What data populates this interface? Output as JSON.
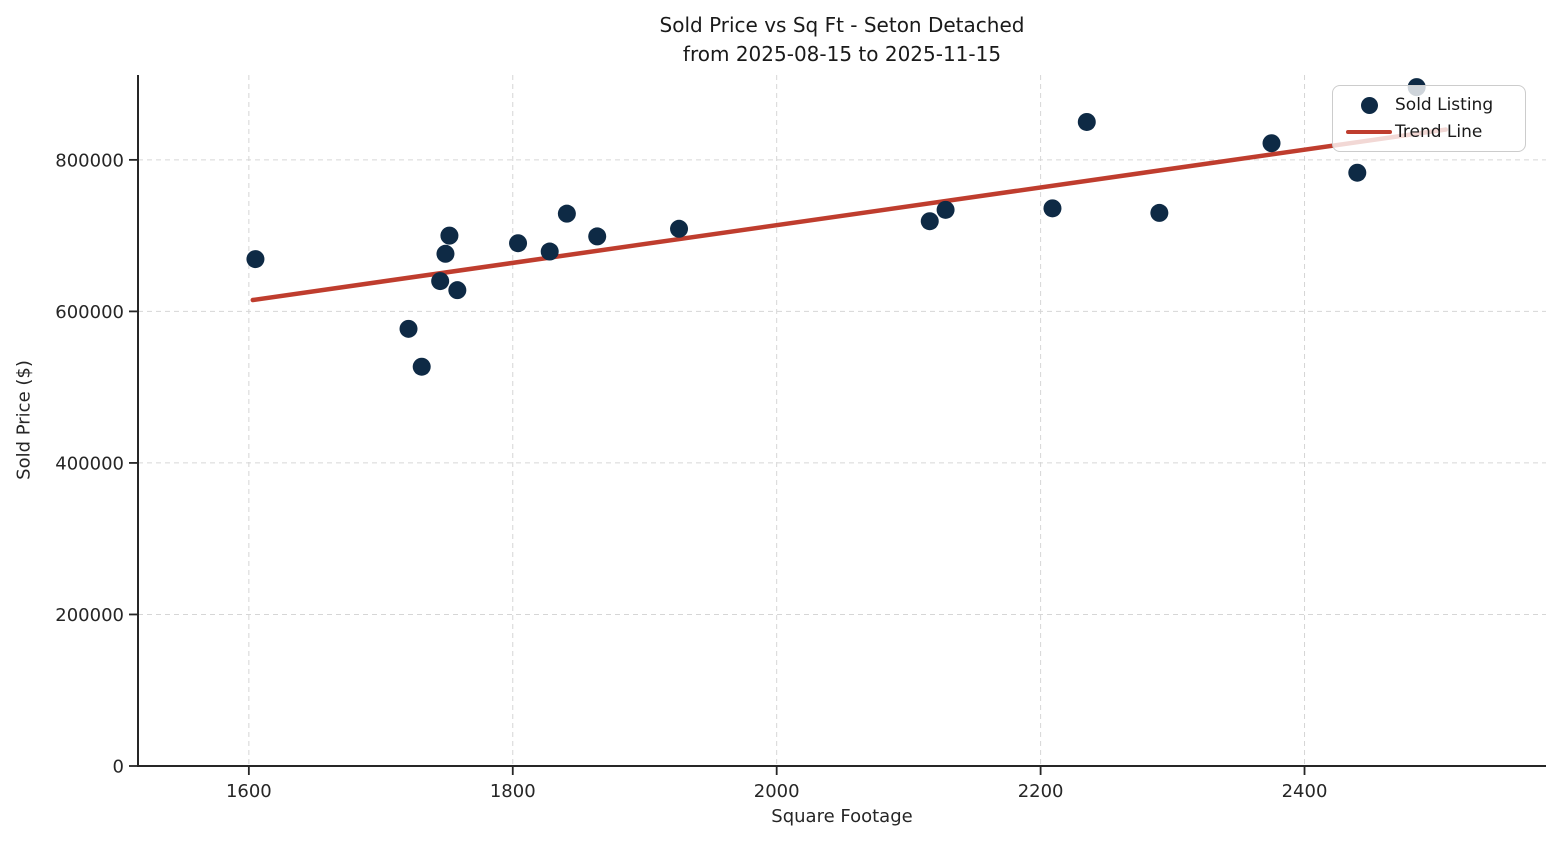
{
  "figure": {
    "title_line1": "Sold Price vs Sq Ft - Seton Detached",
    "title_line2": "from 2025-08-15 to 2025-11-15",
    "xlabel": "Square Footage",
    "ylabel": "Sold Price ($)"
  },
  "legend": {
    "position": "upper-right",
    "items": [
      {
        "label": "Sold Listing",
        "marker": "dot"
      },
      {
        "label": "Trend Line",
        "marker": "line"
      }
    ]
  },
  "colors": {
    "point": "#0e2a45",
    "trend": "#bf3d2e",
    "grid": "#d6d6d6",
    "spine": "#262626",
    "tick_text": "#262626",
    "title_text": "#1a1a1a",
    "background": "#ffffff",
    "legend_bg": "rgba(255,255,255,0.8)",
    "legend_border": "#cccccc"
  },
  "chart_data": {
    "type": "scatter",
    "title": "Sold Price vs Sq Ft - Seton Detached from 2025-08-15 to 2025-11-15",
    "xlabel": "Square Footage",
    "ylabel": "Sold Price ($)",
    "xlim": [
      1516,
      2583
    ],
    "ylim": [
      0,
      912000
    ],
    "x_ticks": [
      1600,
      1800,
      2000,
      2200,
      2400
    ],
    "y_ticks": [
      0,
      200000,
      400000,
      600000,
      800000
    ],
    "grid": true,
    "grid_style": "dashed",
    "legend_position": "upper-right",
    "series": [
      {
        "name": "Sold Listing",
        "type": "scatter",
        "color": "#0e2a45",
        "x": [
          1605,
          1721,
          1731,
          1745,
          1749,
          1752,
          1758,
          1804,
          1828,
          1841,
          1864,
          1926,
          2116,
          2128,
          2209,
          2235,
          2290,
          2375,
          2440,
          2485
        ],
        "y": [
          669000,
          577000,
          527000,
          640000,
          676000,
          700000,
          628000,
          690000,
          679000,
          729000,
          699000,
          709000,
          719000,
          734000,
          736000,
          850000,
          730000,
          822000,
          783000,
          896000
        ]
      },
      {
        "name": "Trend Line",
        "type": "line",
        "color": "#bf3d2e",
        "x": [
          1603,
          2507
        ],
        "y": [
          615000,
          840000
        ]
      }
    ]
  }
}
